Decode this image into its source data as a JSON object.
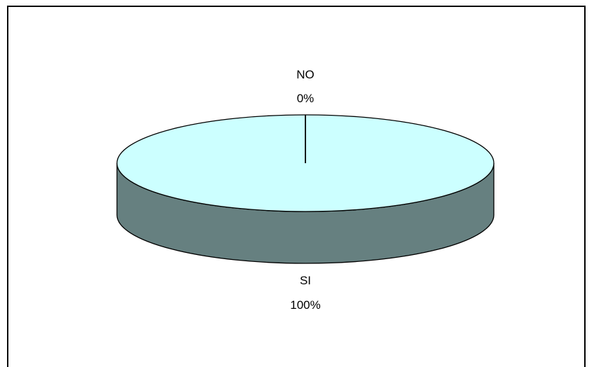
{
  "chart_data": {
    "type": "pie",
    "style": "3d",
    "title": "",
    "categories": [
      "NO",
      "SI"
    ],
    "values": [
      0,
      100
    ],
    "labels": [
      {
        "category": "NO",
        "percent": "0%"
      },
      {
        "category": "SI",
        "percent": "100%"
      }
    ],
    "colors": {
      "top_face": "#ccffff",
      "side_face": "#668080",
      "outline": "#000000"
    },
    "legend": "none"
  }
}
